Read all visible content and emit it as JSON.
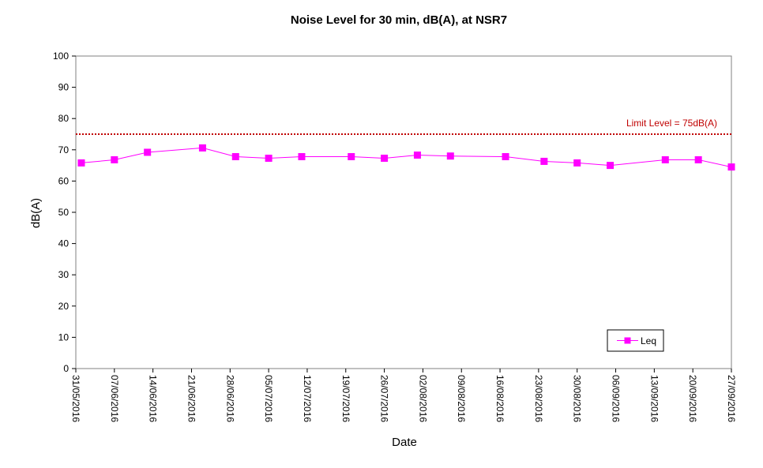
{
  "chart_data": {
    "type": "line",
    "title": "Noise Level for 30 min, dB(A), at NSR7",
    "xlabel": "Date",
    "ylabel": "dB(A)",
    "ylim": [
      0,
      100
    ],
    "yticks": [
      0,
      10,
      20,
      30,
      40,
      50,
      60,
      70,
      80,
      90,
      100
    ],
    "xlim": [
      "2016-05-31",
      "2016-09-27"
    ],
    "xticks": [
      "2016-05-31",
      "2016-06-07",
      "2016-06-14",
      "2016-06-21",
      "2016-06-28",
      "2016-07-05",
      "2016-07-12",
      "2016-07-19",
      "2016-07-26",
      "2016-08-02",
      "2016-08-09",
      "2016-08-16",
      "2016-08-23",
      "2016-08-30",
      "2016-09-06",
      "2016-09-13",
      "2016-09-20",
      "2016-09-27"
    ],
    "xtick_labels": [
      "31/05/2016",
      "07/06/2016",
      "14/06/2016",
      "21/06/2016",
      "28/06/2016",
      "05/07/2016",
      "12/07/2016",
      "19/07/2016",
      "26/07/2016",
      "02/08/2016",
      "09/08/2016",
      "16/08/2016",
      "23/08/2016",
      "30/08/2016",
      "06/09/2016",
      "13/09/2016",
      "20/09/2016",
      "27/09/2016"
    ],
    "grid": false,
    "legend_position": "bottom-right",
    "series": [
      {
        "name": "Leq",
        "color": "#ff00ff",
        "marker": "square",
        "x": [
          "2016-06-01",
          "2016-06-07",
          "2016-06-13",
          "2016-06-23",
          "2016-06-29",
          "2016-07-05",
          "2016-07-11",
          "2016-07-20",
          "2016-07-26",
          "2016-08-01",
          "2016-08-07",
          "2016-08-17",
          "2016-08-24",
          "2016-08-30",
          "2016-09-05",
          "2016-09-15",
          "2016-09-21",
          "2016-09-27"
        ],
        "values": [
          65.8,
          66.8,
          69.2,
          70.6,
          67.8,
          67.3,
          67.8,
          67.8,
          67.3,
          68.3,
          68.0,
          67.8,
          66.3,
          65.8,
          65.0,
          66.8,
          66.8,
          64.5
        ]
      }
    ],
    "reference_lines": [
      {
        "value": 75,
        "label": "Limit Level = 75dB(A)",
        "color": "#c00000",
        "style": "dotted"
      }
    ]
  }
}
